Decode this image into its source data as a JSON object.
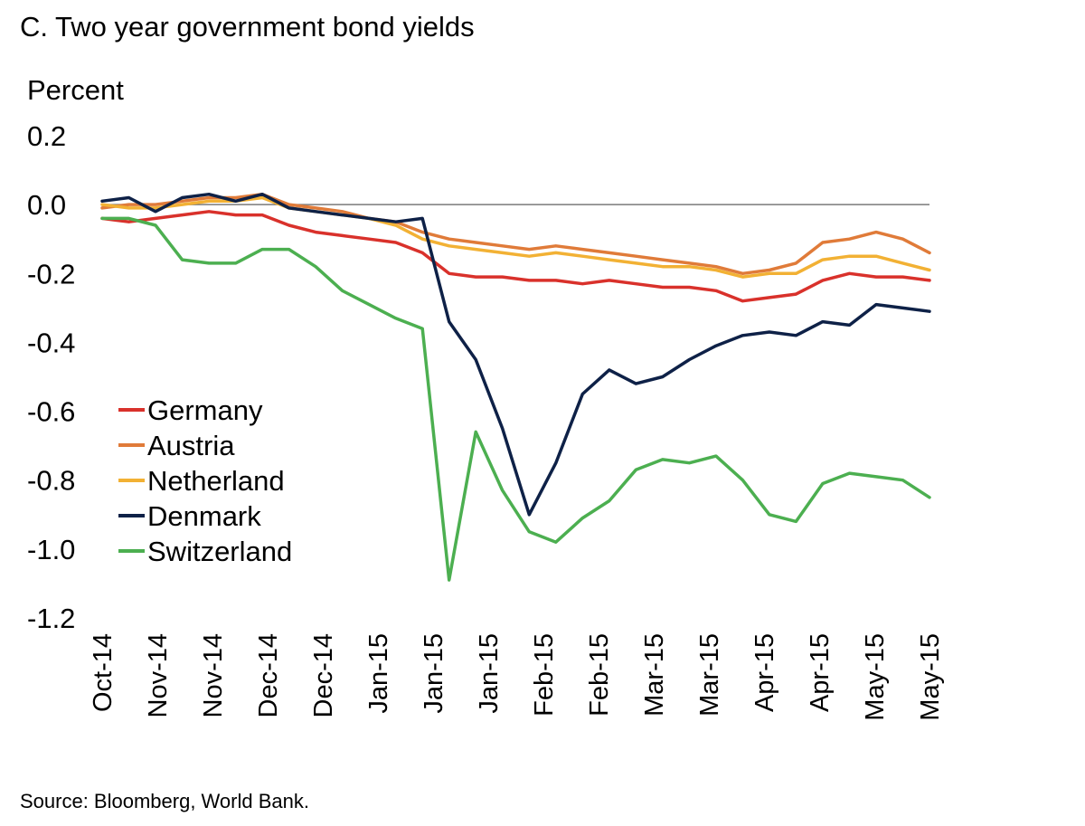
{
  "title": "C. Two year government bond yields",
  "unit_label": "Percent",
  "source": "Source: Bloomberg, World Bank.",
  "colors": {
    "Germany": "#d9312b",
    "Austria": "#e07b39",
    "Netherland": "#f2b134",
    "Denmark": "#0e2147",
    "Switzerland": "#4caf50",
    "zero_line": "#7a7a7a"
  },
  "chart_data": {
    "type": "line",
    "title": "C. Two year government bond yields",
    "ylabel": "Percent",
    "ylim": [
      -1.2,
      0.2
    ],
    "yticks": [
      "0.2",
      "0.0",
      "-0.2",
      "-0.4",
      "-0.6",
      "-0.8",
      "-1.0",
      "-1.2"
    ],
    "ytick_values": [
      0.2,
      0.0,
      -0.2,
      -0.4,
      -0.6,
      -0.8,
      -1.0,
      -1.2
    ],
    "xticks": [
      "Oct-14",
      "Nov-14",
      "Nov-14",
      "Dec-14",
      "Dec-14",
      "Jan-15",
      "Jan-15",
      "Jan-15",
      "Feb-15",
      "Feb-15",
      "Mar-15",
      "Mar-15",
      "Apr-15",
      "Apr-15",
      "May-15",
      "May-15"
    ],
    "x_range": [
      0,
      15.5
    ],
    "grid": false,
    "legend_position": "bottom-left",
    "zero_line": true,
    "series": [
      {
        "name": "Germany",
        "x": [
          0,
          0.5,
          1.0,
          1.5,
          2.0,
          2.5,
          3.0,
          3.5,
          4.0,
          4.5,
          5.0,
          5.5,
          6.0,
          6.5,
          7.0,
          7.5,
          8.0,
          8.5,
          9.0,
          9.5,
          10.0,
          10.5,
          11.0,
          11.5,
          12.0,
          12.5,
          13.0,
          13.5,
          14.0,
          14.5,
          15.0,
          15.5
        ],
        "values": [
          -0.04,
          -0.05,
          -0.04,
          -0.03,
          -0.02,
          -0.03,
          -0.03,
          -0.06,
          -0.08,
          -0.09,
          -0.1,
          -0.11,
          -0.14,
          -0.2,
          -0.21,
          -0.21,
          -0.22,
          -0.22,
          -0.23,
          -0.22,
          -0.23,
          -0.24,
          -0.24,
          -0.25,
          -0.28,
          -0.27,
          -0.26,
          -0.22,
          -0.2,
          -0.21,
          -0.21,
          -0.22
        ]
      },
      {
        "name": "Austria",
        "x": [
          0,
          0.5,
          1.0,
          1.5,
          2.0,
          2.5,
          3.0,
          3.5,
          4.0,
          4.5,
          5.0,
          5.5,
          6.0,
          6.5,
          7.0,
          7.5,
          8.0,
          8.5,
          9.0,
          9.5,
          10.0,
          10.5,
          11.0,
          11.5,
          12.0,
          12.5,
          13.0,
          13.5,
          14.0,
          14.5,
          15.0,
          15.5
        ],
        "values": [
          -0.01,
          0.0,
          0.0,
          0.01,
          0.02,
          0.02,
          0.03,
          0.0,
          -0.01,
          -0.02,
          -0.04,
          -0.05,
          -0.08,
          -0.1,
          -0.11,
          -0.12,
          -0.13,
          -0.12,
          -0.13,
          -0.14,
          -0.15,
          -0.16,
          -0.17,
          -0.18,
          -0.2,
          -0.19,
          -0.17,
          -0.11,
          -0.1,
          -0.08,
          -0.1,
          -0.14
        ]
      },
      {
        "name": "Netherland",
        "x": [
          0,
          0.5,
          1.0,
          1.5,
          2.0,
          2.5,
          3.0,
          3.5,
          4.0,
          4.5,
          5.0,
          5.5,
          6.0,
          6.5,
          7.0,
          7.5,
          8.0,
          8.5,
          9.0,
          9.5,
          10.0,
          10.5,
          11.0,
          11.5,
          12.0,
          12.5,
          13.0,
          13.5,
          14.0,
          14.5,
          15.0,
          15.5
        ],
        "values": [
          0.0,
          -0.01,
          -0.01,
          0.0,
          0.01,
          0.01,
          0.02,
          -0.01,
          -0.02,
          -0.03,
          -0.04,
          -0.06,
          -0.1,
          -0.12,
          -0.13,
          -0.14,
          -0.15,
          -0.14,
          -0.15,
          -0.16,
          -0.17,
          -0.18,
          -0.18,
          -0.19,
          -0.21,
          -0.2,
          -0.2,
          -0.16,
          -0.15,
          -0.15,
          -0.17,
          -0.19
        ]
      },
      {
        "name": "Denmark",
        "x": [
          0,
          0.5,
          1.0,
          1.5,
          2.0,
          2.5,
          3.0,
          3.5,
          4.0,
          4.5,
          5.0,
          5.5,
          6.0,
          6.5,
          7.0,
          7.5,
          8.0,
          8.5,
          9.0,
          9.5,
          10.0,
          10.5,
          11.0,
          11.5,
          12.0,
          12.5,
          13.0,
          13.5,
          14.0,
          14.5,
          15.0,
          15.5
        ],
        "values": [
          0.01,
          0.02,
          -0.02,
          0.02,
          0.03,
          0.01,
          0.03,
          -0.01,
          -0.02,
          -0.03,
          -0.04,
          -0.05,
          -0.04,
          -0.34,
          -0.45,
          -0.65,
          -0.9,
          -0.75,
          -0.55,
          -0.48,
          -0.52,
          -0.5,
          -0.45,
          -0.41,
          -0.38,
          -0.37,
          -0.38,
          -0.34,
          -0.35,
          -0.29,
          -0.3,
          -0.31
        ]
      },
      {
        "name": "Switzerland",
        "x": [
          0,
          0.5,
          1.0,
          1.5,
          2.0,
          2.5,
          3.0,
          3.5,
          4.0,
          4.5,
          5.0,
          5.5,
          6.0,
          6.5,
          7.0,
          7.5,
          8.0,
          8.5,
          9.0,
          9.5,
          10.0,
          10.5,
          11.0,
          11.5,
          12.0,
          12.5,
          13.0,
          13.5,
          14.0,
          14.5,
          15.0,
          15.5
        ],
        "values": [
          -0.04,
          -0.04,
          -0.06,
          -0.16,
          -0.17,
          -0.17,
          -0.13,
          -0.13,
          -0.18,
          -0.25,
          -0.29,
          -0.33,
          -0.36,
          -1.09,
          -0.66,
          -0.83,
          -0.95,
          -0.98,
          -0.91,
          -0.86,
          -0.77,
          -0.74,
          -0.75,
          -0.73,
          -0.8,
          -0.9,
          -0.92,
          -0.81,
          -0.78,
          -0.79,
          -0.8,
          -0.85
        ]
      }
    ]
  }
}
